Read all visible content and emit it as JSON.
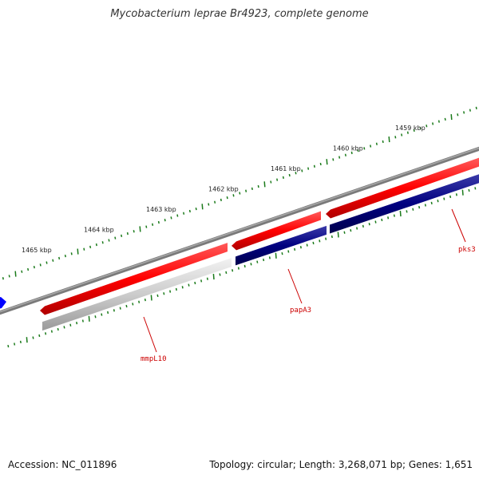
{
  "map": {
    "title": "Mycobacterium leprae Br4923, complete genome",
    "accession_label": "Accession:",
    "accession": "NC_011896",
    "topology_label": "Topology:",
    "topology": "circular",
    "length_label": "Length:",
    "length": "3,268,071 bp",
    "genes_label": "Genes:",
    "genes": "1,651"
  },
  "ruler": {
    "unit": "kbp",
    "ticks": [
      {
        "kbp": 1465,
        "label": "1465 kbp"
      },
      {
        "kbp": 1464,
        "label": "1464 kbp"
      },
      {
        "kbp": 1463,
        "label": "1463 kbp"
      },
      {
        "kbp": 1462,
        "label": "1462 kbp"
      },
      {
        "kbp": 1461,
        "label": "1461 kbp"
      },
      {
        "kbp": 1460,
        "label": "1460 kbp"
      },
      {
        "kbp": 1459,
        "label": "1459 kbp"
      }
    ]
  },
  "genes": [
    {
      "name": "mmpL10",
      "strand": "forward",
      "color": "#e8e8e8"
    },
    {
      "name": "papA3",
      "strand": "forward",
      "color": "#000080"
    },
    {
      "name": "pks3",
      "strand": "forward",
      "color": "#000080"
    }
  ],
  "colors": {
    "backbone": "#808080",
    "forward_feature": "#ff0000",
    "ruler_tick": "#1a7a1a",
    "label": "#cc0000",
    "neighbor_gene": "#0000ff"
  }
}
